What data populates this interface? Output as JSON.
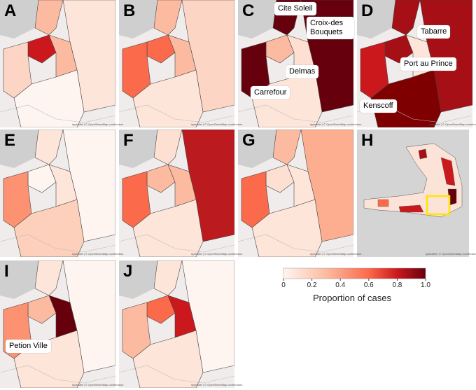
{
  "panels": [
    {
      "label": "A"
    },
    {
      "label": "B"
    },
    {
      "label": "C",
      "annotations": [
        "Cite Soleil",
        "Croix-des Bouquets",
        "Delmas",
        "Carrefour"
      ]
    },
    {
      "label": "D",
      "annotations": [
        "Tabarre",
        "Port au Prince",
        "Kenscoff"
      ]
    },
    {
      "label": "E"
    },
    {
      "label": "F"
    },
    {
      "label": "G"
    },
    {
      "label": "H"
    },
    {
      "label": "I",
      "annotations": [
        "Petion Ville"
      ]
    },
    {
      "label": "J"
    }
  ],
  "attribution": "ipyleaflet | © OpenStreetMap contributors",
  "legend": {
    "title": "Proportion of cases",
    "range": [
      0,
      1
    ],
    "ticks": [
      0,
      0.2,
      0.4,
      0.6,
      0.8,
      {
        "value": 1,
        "label": "1.0"
      }
    ]
  }
}
